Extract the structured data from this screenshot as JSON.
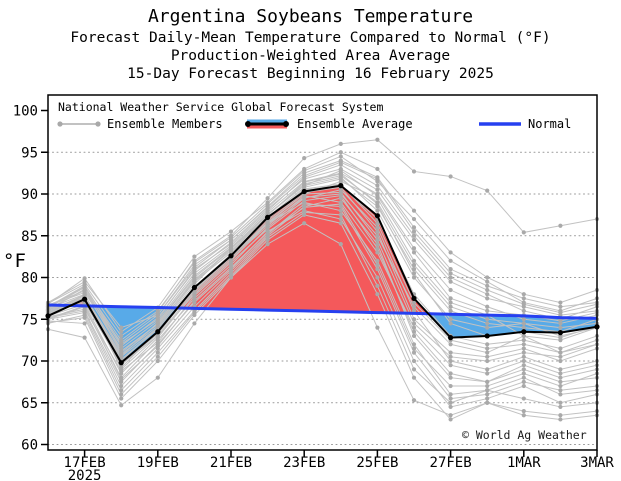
{
  "header": {
    "title": "Argentina Soybeans Temperature",
    "subtitle1": "Forecast Daily-Mean Temperature Compared to Normal (°F)",
    "subtitle2": "Production-Weighted Area Average",
    "subtitle3": "15-Day Forecast Beginning 16 February 2025"
  },
  "legend": {
    "source": "National Weather Service Global Forecast System",
    "members_label": "Ensemble Members",
    "average_label": "Ensemble Average",
    "normal_label": "Normal"
  },
  "watermark": {
    "text": "© World Ag Weather"
  },
  "colors": {
    "above_normal_fill": "#f4595b",
    "below_normal_fill": "#58aae8",
    "normal_line": "#2640f0",
    "average_line": "#000000",
    "member_line": "#c2c2c2",
    "member_dot": "#a9a9a9",
    "grid": "#999999",
    "frame": "#000000"
  },
  "chart_data": {
    "type": "line",
    "title": "Argentina Soybeans Temperature",
    "xlabel": "",
    "ylabel": "°F",
    "ylim": [
      60,
      100
    ],
    "yticks": [
      60,
      65,
      70,
      75,
      80,
      85,
      90,
      95,
      100
    ],
    "grid": "horizontal-dotted",
    "legend_position": "top-left-inside",
    "x_dates": [
      "16FEB",
      "17FEB",
      "18FEB",
      "19FEB",
      "20FEB",
      "21FEB",
      "22FEB",
      "23FEB",
      "24FEB",
      "25FEB",
      "26FEB",
      "27FEB",
      "28FEB",
      "1MAR",
      "2MAR",
      "3MAR"
    ],
    "x_tick_days": [
      1,
      3,
      5,
      7,
      9,
      11,
      13,
      15
    ],
    "x_tick_labels": [
      "17FEB",
      "19FEB",
      "21FEB",
      "23FEB",
      "25FEB",
      "27FEB",
      "1MAR",
      "3MAR"
    ],
    "x_year_label": "2025",
    "series": [
      {
        "name": "Ensemble Average",
        "values": [
          75.4,
          77.4,
          69.8,
          73.5,
          78.8,
          82.6,
          87.2,
          90.3,
          91.0,
          87.4,
          77.5,
          72.8,
          73.0,
          73.5,
          73.4,
          74.1
        ]
      },
      {
        "name": "Normal",
        "values": [
          76.7,
          76.6,
          76.5,
          76.4,
          76.3,
          76.2,
          76.1,
          76.0,
          75.9,
          75.8,
          75.7,
          75.6,
          75.5,
          75.4,
          75.2,
          75.1
        ]
      }
    ],
    "fill_rule": "red where Ensemble Average above Normal, blue where below",
    "ensemble_members": [
      [
        76.0,
        77.5,
        70.5,
        74.0,
        79.5,
        83.0,
        87.5,
        91.0,
        92.0,
        88.0,
        80.0,
        75.0,
        74.0,
        74.5,
        73.0,
        74.0
      ],
      [
        75.5,
        78.0,
        69.0,
        73.0,
        78.0,
        82.0,
        86.5,
        90.0,
        91.5,
        89.5,
        82.0,
        77.0,
        75.5,
        73.0,
        71.0,
        72.0
      ],
      [
        76.5,
        79.0,
        72.0,
        75.0,
        81.0,
        84.0,
        88.0,
        92.0,
        93.5,
        91.0,
        85.0,
        80.0,
        78.0,
        76.0,
        75.0,
        76.5
      ],
      [
        75.0,
        76.5,
        68.0,
        72.5,
        77.5,
        81.5,
        86.0,
        89.5,
        90.5,
        86.0,
        76.0,
        70.0,
        69.0,
        70.5,
        69.0,
        70.0
      ],
      [
        76.8,
        79.9,
        73.5,
        76.4,
        82.5,
        85.5,
        89.0,
        93.0,
        95.0,
        93.0,
        88.0,
        83.0,
        80.0,
        78.0,
        77.0,
        78.5
      ],
      [
        74.5,
        75.5,
        66.5,
        71.0,
        76.0,
        80.5,
        85.0,
        88.5,
        89.5,
        84.0,
        73.0,
        68.0,
        67.5,
        69.0,
        67.5,
        68.0
      ],
      [
        76.2,
        78.5,
        71.0,
        74.5,
        80.0,
        83.5,
        87.0,
        90.5,
        91.0,
        87.0,
        78.0,
        73.0,
        72.0,
        72.5,
        71.5,
        73.0
      ],
      [
        75.8,
        77.0,
        69.5,
        73.5,
        78.5,
        82.5,
        86.5,
        89.0,
        88.0,
        82.0,
        72.0,
        66.0,
        66.5,
        68.0,
        66.0,
        66.5
      ],
      [
        77.0,
        79.5,
        74.0,
        75.5,
        81.5,
        84.5,
        88.5,
        92.5,
        94.0,
        92.0,
        86.0,
        81.0,
        79.0,
        77.5,
        76.5,
        77.0
      ],
      [
        75.2,
        76.0,
        67.5,
        72.0,
        77.0,
        81.0,
        85.5,
        88.0,
        87.0,
        80.0,
        70.0,
        64.5,
        65.5,
        67.0,
        65.0,
        66.0
      ],
      [
        76.4,
        78.8,
        72.5,
        75.8,
        82.0,
        85.0,
        89.5,
        94.3,
        96.0,
        96.5,
        92.7,
        92.1,
        90.4,
        85.4,
        86.2,
        87.0
      ],
      [
        74.8,
        74.5,
        65.5,
        70.0,
        75.5,
        80.0,
        84.5,
        87.5,
        86.5,
        78.0,
        68.0,
        63.0,
        65.0,
        63.5,
        63.0,
        63.5
      ],
      [
        76.0,
        77.8,
        70.8,
        74.2,
        79.8,
        83.2,
        87.2,
        90.8,
        91.8,
        88.5,
        81.0,
        76.0,
        74.5,
        74.0,
        73.5,
        75.0
      ],
      [
        75.6,
        77.2,
        69.8,
        73.2,
        78.8,
        82.8,
        86.8,
        90.2,
        90.8,
        85.5,
        75.0,
        71.0,
        70.5,
        71.5,
        70.0,
        71.5
      ],
      [
        76.6,
        78.2,
        71.5,
        74.8,
        80.5,
        83.8,
        87.8,
        91.5,
        92.5,
        90.0,
        83.5,
        78.5,
        76.5,
        75.0,
        74.5,
        75.5
      ],
      [
        75.4,
        76.8,
        68.5,
        72.8,
        78.2,
        82.2,
        86.2,
        89.8,
        89.0,
        83.0,
        74.0,
        69.5,
        68.5,
        70.0,
        68.5,
        69.5
      ],
      [
        76.1,
        78.6,
        71.8,
        75.2,
        80.8,
        84.2,
        88.2,
        91.8,
        93.0,
        90.5,
        84.5,
        79.5,
        77.5,
        76.5,
        75.5,
        76.0
      ],
      [
        75.0,
        75.8,
        67.0,
        71.5,
        76.5,
        80.8,
        85.2,
        88.8,
        88.5,
        81.0,
        71.0,
        65.5,
        66.0,
        67.5,
        66.5,
        67.0
      ],
      [
        76.3,
        78.0,
        70.2,
        73.8,
        79.2,
        83.5,
        87.5,
        91.2,
        92.2,
        89.0,
        81.5,
        76.5,
        75.0,
        74.5,
        74.0,
        74.5
      ],
      [
        75.7,
        77.5,
        69.2,
        73.5,
        78.6,
        82.6,
        86.6,
        90.0,
        90.2,
        84.5,
        74.5,
        70.5,
        70.0,
        71.0,
        70.5,
        72.0
      ],
      [
        76.9,
        79.2,
        73.0,
        76.0,
        81.8,
        84.8,
        88.8,
        92.8,
        94.5,
        91.5,
        87.0,
        82.0,
        79.5,
        77.0,
        76.0,
        77.5
      ],
      [
        74.6,
        75.2,
        66.0,
        70.5,
        75.8,
        80.2,
        84.8,
        87.8,
        87.5,
        79.0,
        69.0,
        65.0,
        66.5,
        65.5,
        64.5,
        65.0
      ],
      [
        76.0,
        77.9,
        70.0,
        74.0,
        79.5,
        83.0,
        87.0,
        90.6,
        91.2,
        86.5,
        77.0,
        72.5,
        71.5,
        72.0,
        71.0,
        72.5
      ],
      [
        75.3,
        76.2,
        68.8,
        72.2,
        77.8,
        81.8,
        85.8,
        89.2,
        89.8,
        83.5,
        73.5,
        68.5,
        67.5,
        69.5,
        68.0,
        69.0
      ],
      [
        76.7,
        78.4,
        72.2,
        75.5,
        81.2,
        84.5,
        88.4,
        92.2,
        93.8,
        91.8,
        85.5,
        80.5,
        78.5,
        76.8,
        75.8,
        76.8
      ],
      [
        75.1,
        76.6,
        67.8,
        71.8,
        77.2,
        81.2,
        85.4,
        88.4,
        88.8,
        81.5,
        71.5,
        67.0,
        67.0,
        68.5,
        67.0,
        68.5
      ],
      [
        76.2,
        77.6,
        70.6,
        74.6,
        80.2,
        83.6,
        87.6,
        91.0,
        92.8,
        89.8,
        83.0,
        77.5,
        76.0,
        75.5,
        74.8,
        75.8
      ],
      [
        75.9,
        77.3,
        69.6,
        73.0,
        78.4,
        82.4,
        86.4,
        89.6,
        90.0,
        85.0,
        76.5,
        72.0,
        71.0,
        73.0,
        72.5,
        74.0
      ],
      [
        73.8,
        72.8,
        64.7,
        68.0,
        74.5,
        80.0,
        84.0,
        86.5,
        84.0,
        74.0,
        65.3,
        63.5,
        65.0,
        64.0,
        63.5,
        64.0
      ],
      [
        76.5,
        78.9,
        71.2,
        74.4,
        79.6,
        83.4,
        87.4,
        91.4,
        92.4,
        88.8,
        80.5,
        74.5,
        73.0,
        73.5,
        72.8,
        74.2
      ]
    ]
  }
}
